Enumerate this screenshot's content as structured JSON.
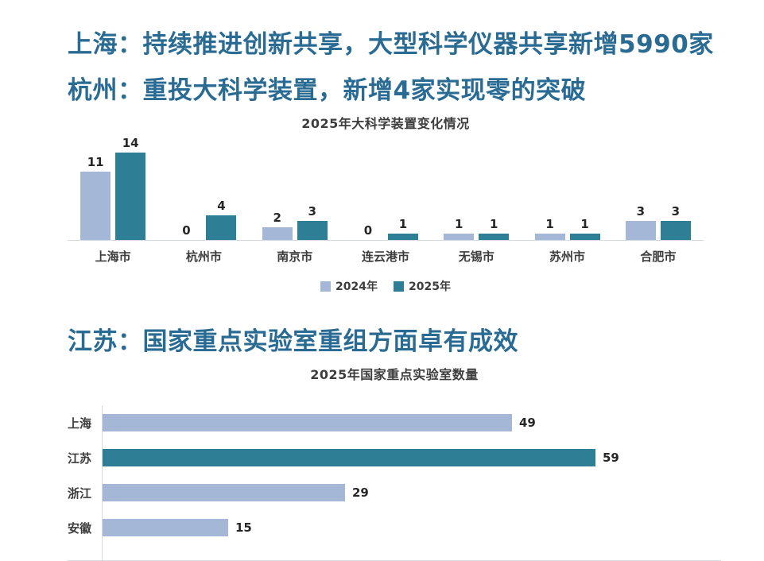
{
  "headlines": {
    "line1": "上海：持续推进创新共享，大型科学仪器共享新增5990家",
    "line2": "杭州：重投大科学装置，新增4家实现零的突破",
    "line3": "江苏：国家重点实验室重组方面卓有成效"
  },
  "colors": {
    "headline": "#2a6b93",
    "series2024": "#a4b7d6",
    "series2025": "#2e7e95",
    "axis": "#d4dade",
    "value_label": "#262626",
    "category_label": "#3d3d3d"
  },
  "chart_data": [
    {
      "type": "bar",
      "title": "2025年大科学装置变化情况",
      "categories": [
        "上海市",
        "杭州市",
        "南京市",
        "连云港市",
        "无锡市",
        "苏州市",
        "合肥市"
      ],
      "series": [
        {
          "name": "2024年",
          "color_key": "series2024",
          "values": [
            11,
            0,
            2,
            0,
            1,
            1,
            3
          ]
        },
        {
          "name": "2025年",
          "color_key": "series2025",
          "values": [
            14,
            4,
            3,
            1,
            1,
            1,
            3
          ]
        }
      ],
      "ylim": [
        0,
        14
      ],
      "grid": false,
      "legend_position": "bottom"
    },
    {
      "type": "bar",
      "orientation": "horizontal",
      "title": "2025年国家重点实验室数量",
      "categories": [
        "上海",
        "江苏",
        "浙江",
        "安徽"
      ],
      "values": [
        49,
        59,
        29,
        15
      ],
      "bar_color_keys": [
        "series2024",
        "series2025",
        "series2024",
        "series2024"
      ],
      "xlim": [
        0,
        62
      ],
      "grid": false
    }
  ]
}
